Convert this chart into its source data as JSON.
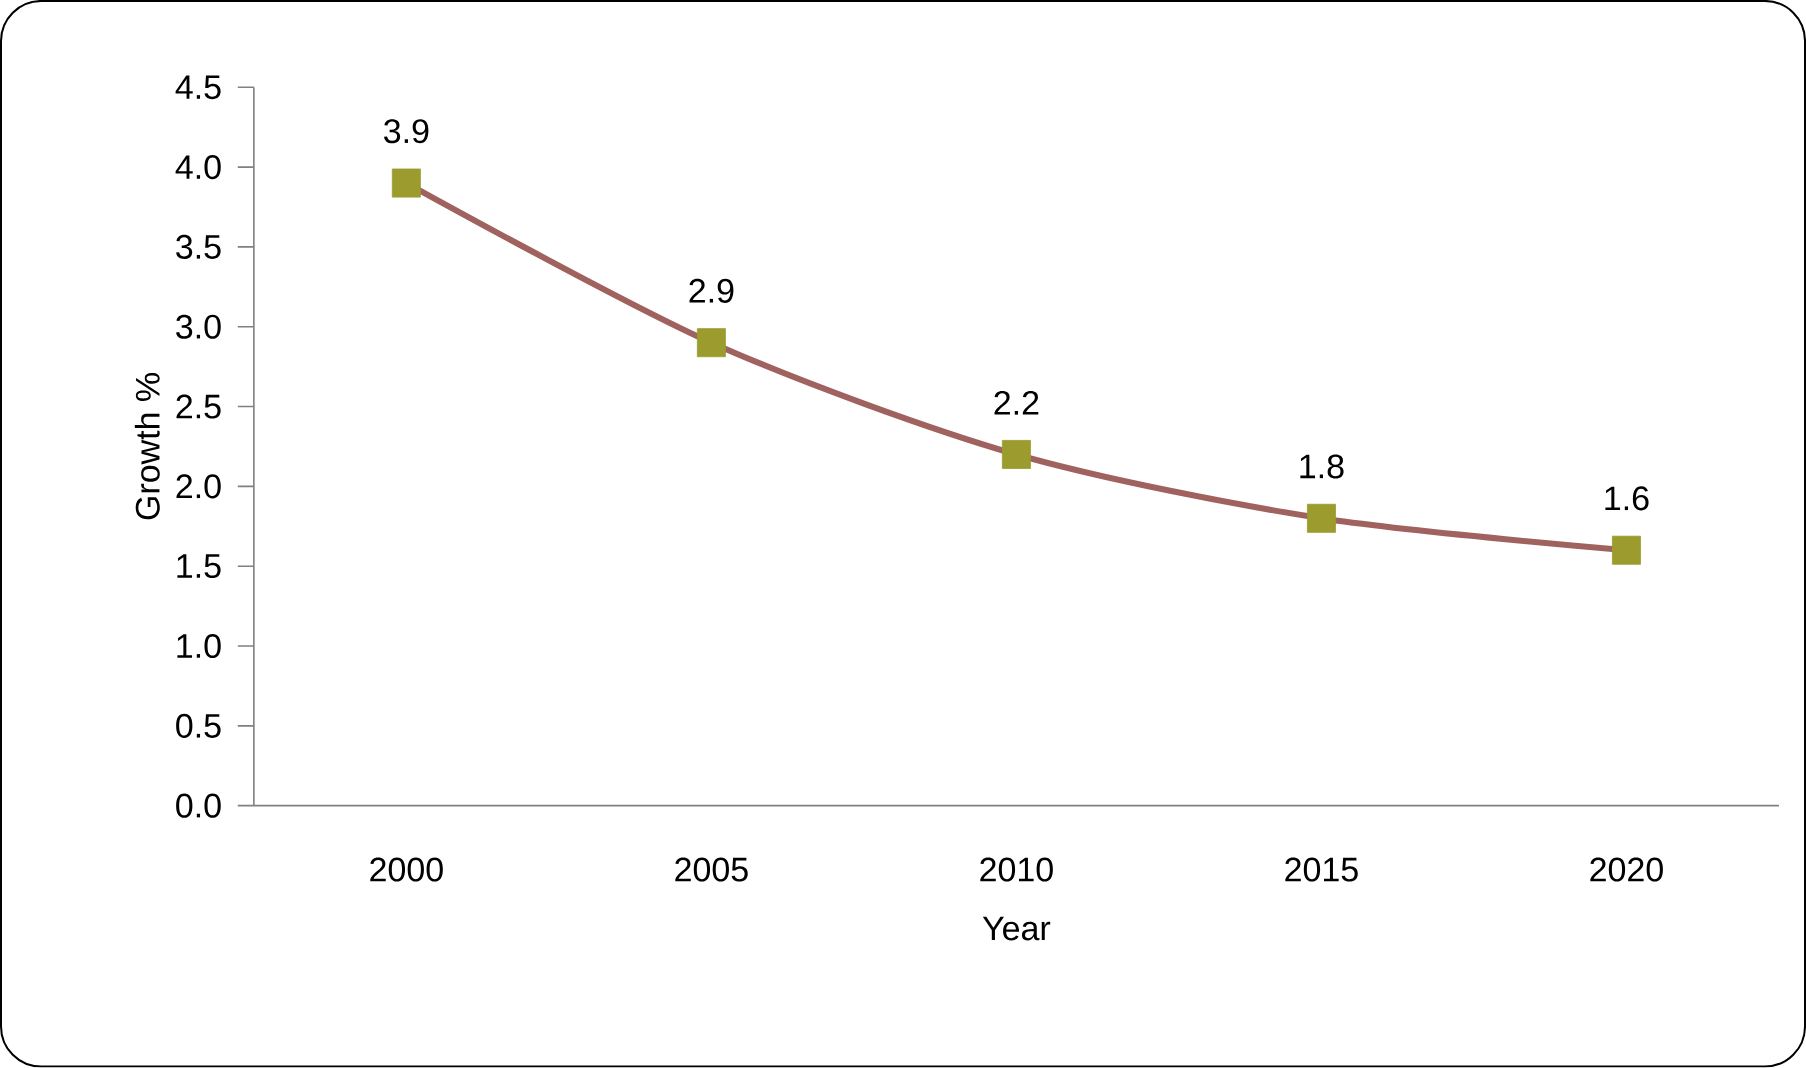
{
  "chart_data": {
    "type": "line",
    "xlabel": "Year",
    "ylabel": "Growth %",
    "categories": [
      "2000",
      "2005",
      "2010",
      "2015",
      "2020"
    ],
    "series": [
      {
        "color": "#a0625f",
        "colors": [
          "#9c9b2d",
          "#9c9b2d",
          "#9c9b2d",
          "#9c9b2d",
          "#9c9b2d"
        ],
        "values": [
          3.9,
          2.9,
          2.2,
          1.8,
          1.6
        ]
      }
    ],
    "ylim": [
      0,
      4.5
    ],
    "yticks": [
      {
        "value": 0,
        "label": "0.0"
      },
      {
        "value": 0.5,
        "label": "0.5"
      },
      {
        "value": 1,
        "label": "1.0"
      },
      {
        "value": 1.5,
        "label": "1.5"
      },
      {
        "value": 2,
        "label": "2.0"
      },
      {
        "value": 2.5,
        "label": "2.5"
      },
      {
        "value": 3,
        "label": "3.0"
      },
      {
        "value": 3.5,
        "label": "3.5"
      },
      {
        "value": 4,
        "label": "4.0"
      },
      {
        "value": 4.5,
        "label": "4.5"
      }
    ],
    "marker": "square",
    "data_labels": true,
    "grid": false
  }
}
